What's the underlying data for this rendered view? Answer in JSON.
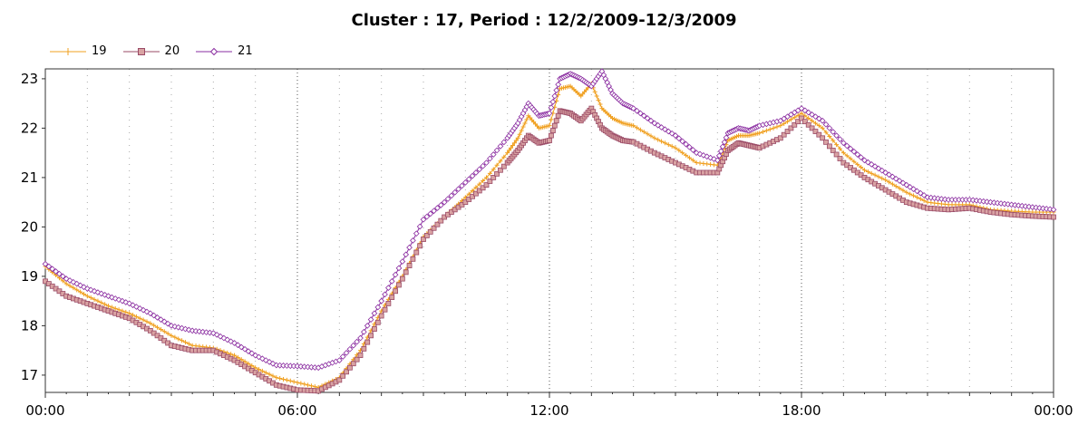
{
  "chart_data": {
    "type": "line",
    "title": "Cluster : 17, Period : 12/2/2009-12/3/2009",
    "xlabel": "",
    "ylabel": "",
    "ylim": [
      16.65,
      23.2
    ],
    "xlim_hours": [
      0,
      24
    ],
    "x_tick_labels": [
      "00:00",
      "06:00",
      "12:00",
      "18:00",
      "00:00"
    ],
    "y_ticks": [
      "17",
      "18",
      "19",
      "20",
      "21",
      "22",
      "23"
    ],
    "grid": true,
    "legend_position": "top-left",
    "series": [
      {
        "name": "19",
        "color": "#f0a020",
        "marker": "plus",
        "x": [
          0,
          0.5,
          1,
          1.5,
          2,
          2.5,
          3,
          3.5,
          4,
          4.5,
          5,
          5.5,
          6,
          6.5,
          7,
          7.5,
          8,
          8.5,
          9,
          9.5,
          10,
          10.5,
          11,
          11.25,
          11.5,
          11.75,
          12,
          12.25,
          12.5,
          12.75,
          13,
          13.25,
          13.5,
          13.75,
          14,
          14.5,
          15,
          15.5,
          16,
          16.25,
          16.5,
          16.75,
          17,
          17.5,
          18,
          18.5,
          19,
          19.5,
          20,
          20.5,
          21,
          21.5,
          22,
          22.5,
          23,
          23.5,
          24
        ],
        "y": [
          19.2,
          18.85,
          18.6,
          18.4,
          18.25,
          18.05,
          17.8,
          17.6,
          17.55,
          17.4,
          17.15,
          16.95,
          16.85,
          16.75,
          16.95,
          17.5,
          18.3,
          19.0,
          19.8,
          20.2,
          20.6,
          21.0,
          21.5,
          21.8,
          22.25,
          22.0,
          22.05,
          22.8,
          22.85,
          22.65,
          22.9,
          22.4,
          22.2,
          22.1,
          22.05,
          21.8,
          21.6,
          21.3,
          21.25,
          21.75,
          21.85,
          21.85,
          21.9,
          22.05,
          22.3,
          22.0,
          21.5,
          21.15,
          20.95,
          20.7,
          20.5,
          20.45,
          20.45,
          20.35,
          20.32,
          20.3,
          20.3
        ]
      },
      {
        "name": "20",
        "color": "#9a4a66",
        "marker": "square",
        "x": [
          0,
          0.5,
          1,
          1.5,
          2,
          2.5,
          3,
          3.5,
          4,
          4.5,
          5,
          5.5,
          6,
          6.5,
          7,
          7.5,
          8,
          8.5,
          9,
          9.5,
          10,
          10.5,
          11,
          11.25,
          11.5,
          11.75,
          12,
          12.25,
          12.5,
          12.75,
          13,
          13.25,
          13.5,
          13.75,
          14,
          14.5,
          15,
          15.5,
          16,
          16.25,
          16.5,
          16.75,
          17,
          17.5,
          18,
          18.5,
          19,
          19.5,
          20,
          20.5,
          21,
          21.5,
          22,
          22.5,
          23,
          23.5,
          24
        ],
        "y": [
          18.9,
          18.6,
          18.45,
          18.3,
          18.15,
          17.9,
          17.6,
          17.5,
          17.5,
          17.3,
          17.05,
          16.8,
          16.7,
          16.68,
          16.9,
          17.4,
          18.2,
          18.95,
          19.75,
          20.2,
          20.5,
          20.85,
          21.3,
          21.55,
          21.85,
          21.7,
          21.75,
          22.35,
          22.3,
          22.15,
          22.4,
          22.0,
          21.85,
          21.75,
          21.72,
          21.5,
          21.3,
          21.1,
          21.1,
          21.55,
          21.7,
          21.65,
          21.6,
          21.8,
          22.2,
          21.8,
          21.3,
          21.0,
          20.75,
          20.5,
          20.38,
          20.35,
          20.38,
          20.3,
          20.25,
          20.22,
          20.2
        ]
      },
      {
        "name": "21",
        "color": "#8a2ca0",
        "marker": "diamond",
        "x": [
          0,
          0.5,
          1,
          1.5,
          2,
          2.5,
          3,
          3.5,
          4,
          4.5,
          5,
          5.5,
          6,
          6.5,
          7,
          7.5,
          8,
          8.5,
          9,
          9.5,
          10,
          10.5,
          11,
          11.25,
          11.5,
          11.75,
          12,
          12.25,
          12.5,
          12.75,
          13,
          13.25,
          13.5,
          13.75,
          14,
          14.5,
          15,
          15.5,
          16,
          16.25,
          16.5,
          16.75,
          17,
          17.5,
          18,
          18.5,
          19,
          19.5,
          20,
          20.5,
          21,
          21.5,
          22,
          22.5,
          23,
          23.5,
          24
        ],
        "y": [
          19.25,
          18.95,
          18.75,
          18.6,
          18.45,
          18.25,
          18.0,
          17.9,
          17.85,
          17.65,
          17.4,
          17.2,
          17.18,
          17.15,
          17.3,
          17.75,
          18.5,
          19.3,
          20.15,
          20.5,
          20.9,
          21.3,
          21.8,
          22.1,
          22.5,
          22.25,
          22.3,
          23.0,
          23.1,
          23.0,
          22.85,
          23.15,
          22.7,
          22.5,
          22.4,
          22.1,
          21.85,
          21.5,
          21.35,
          21.9,
          22.0,
          21.95,
          22.05,
          22.15,
          22.4,
          22.15,
          21.7,
          21.35,
          21.1,
          20.85,
          20.6,
          20.55,
          20.55,
          20.5,
          20.45,
          20.4,
          20.35
        ]
      }
    ]
  }
}
